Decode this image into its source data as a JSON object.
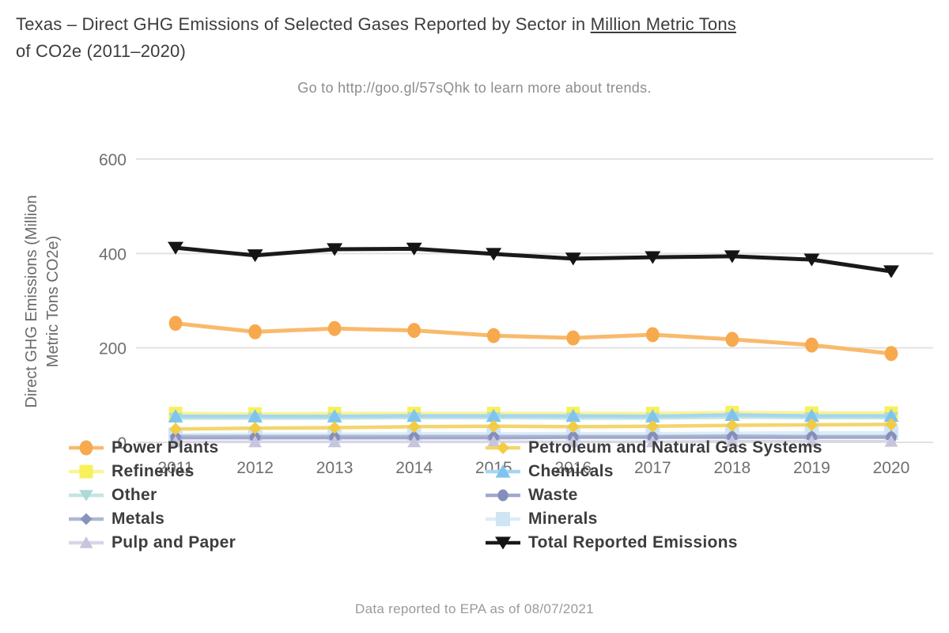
{
  "chart_data": {
    "type": "line",
    "title_line1_prefix": "Texas – Direct GHG Emissions of Selected Gases Reported by Sector in ",
    "title_line1_underlined": "Million Metric Tons",
    "title_line2": "of CO2e (2011–2020)",
    "subtitle": "Go to http://goo.gl/57sQhk to learn more about trends.",
    "footnote": "Data reported to EPA as of 08/07/2021",
    "ylabel_line1": "Direct GHG Emissions (Million",
    "ylabel_line2": "Metric Tons CO2e)",
    "x": [
      2011,
      2012,
      2013,
      2014,
      2015,
      2016,
      2017,
      2018,
      2019,
      2020
    ],
    "yticks": [
      0,
      200,
      400,
      600
    ],
    "ylim": [
      0,
      600
    ],
    "grid": true,
    "grid_color": "#E2E2E2",
    "tick_text_color": "#6F6F6F",
    "legend_position": "bottom, two columns, overlapping x-axis labels",
    "series": [
      {
        "name": "Power Plants",
        "marker": "circle",
        "color": "#F7A94E",
        "line_color": "#F9BA6C",
        "line_width": 5,
        "marker_size": 9.5,
        "z": 9,
        "values": [
          252,
          234,
          241,
          237,
          226,
          221,
          228,
          218,
          206,
          188
        ]
      },
      {
        "name": "Refineries",
        "marker": "square",
        "color": "#F8F05C",
        "line_color": "#FAF493",
        "line_width": 4.5,
        "marker_size": 8.5,
        "z": 5,
        "values": [
          61,
          60,
          61,
          61,
          61,
          61,
          61,
          63,
          62,
          62
        ]
      },
      {
        "name": "Other",
        "marker": "triangle-down",
        "color": "#AEDAD6",
        "line_color": "#C3E5E1",
        "line_width": 4,
        "marker_size": 8.5,
        "z": 6,
        "values": [
          51,
          51,
          51,
          52,
          52,
          51,
          51,
          53,
          52,
          52
        ]
      },
      {
        "name": "Metals",
        "marker": "diamond",
        "color": "#8694BC",
        "line_color": "#AEB8D4",
        "line_width": 3.5,
        "marker_size": 7.5,
        "z": 2,
        "values": [
          13,
          13,
          13,
          13,
          13,
          13,
          13,
          14,
          13,
          13
        ]
      },
      {
        "name": "Pulp and Paper",
        "marker": "triangle-up",
        "color": "#C5C5DD",
        "line_color": "#D7D7E8",
        "line_width": 3.5,
        "marker_size": 8,
        "z": 4,
        "values": [
          1,
          1,
          1,
          1,
          1,
          1,
          1,
          2,
          2,
          2
        ]
      },
      {
        "name": "Petroleum and Natural Gas Systems",
        "marker": "diamond",
        "color": "#F1CC44",
        "line_color": "#F4D56C",
        "line_width": 4.5,
        "marker_size": 8,
        "z": 8,
        "values": [
          28,
          30,
          31,
          33,
          34,
          33,
          34,
          36,
          37,
          38
        ]
      },
      {
        "name": "Chemicals",
        "marker": "triangle-up",
        "color": "#7FC4EC",
        "line_color": "#A5D6F1",
        "line_width": 4.5,
        "marker_size": 9,
        "z": 7,
        "values": [
          55,
          55,
          55,
          56,
          56,
          56,
          55,
          58,
          56,
          56
        ]
      },
      {
        "name": "Waste",
        "marker": "circle",
        "color": "#858EBB",
        "line_color": "#A0A9CC",
        "line_width": 3.5,
        "marker_size": 7.5,
        "z": 3,
        "values": [
          9,
          9,
          9,
          9,
          9,
          10,
          10,
          10,
          10,
          10
        ]
      },
      {
        "name": "Minerals",
        "marker": "square",
        "color": "#CFE5F4",
        "line_color": "#DCEDF8",
        "line_width": 4.5,
        "marker_size": 9,
        "z": 1,
        "values": [
          16,
          17,
          17,
          18,
          18,
          18,
          18,
          19,
          20,
          20
        ]
      },
      {
        "name": "Total Reported Emissions",
        "marker": "triangle-down",
        "color": "#141414",
        "line_color": "#1A1A1A",
        "line_width": 5,
        "marker_size": 9.5,
        "z": 10,
        "values": [
          412,
          396,
          409,
          410,
          399,
          389,
          392,
          394,
          387,
          362
        ]
      }
    ]
  }
}
